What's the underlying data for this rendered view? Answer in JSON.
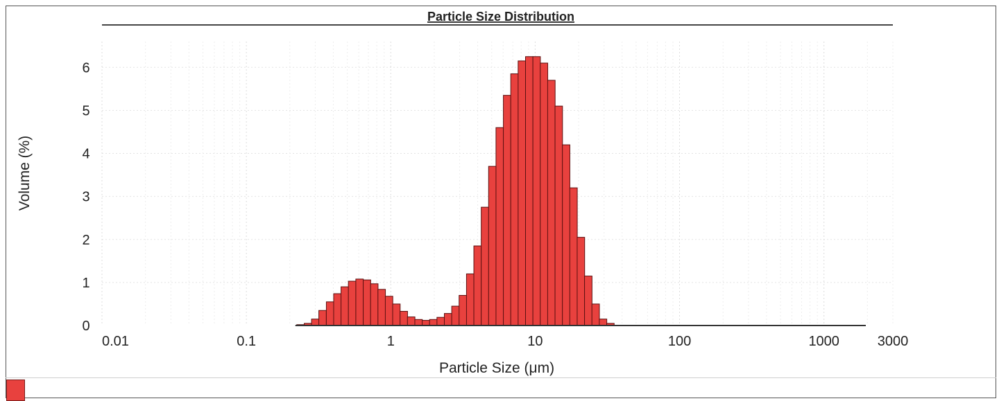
{
  "chart_data": {
    "type": "bar",
    "title": "Particle Size Distribution",
    "xlabel": "Particle Size (μm)",
    "ylabel": "Volume (%)",
    "xscale": "log",
    "xlim": [
      0.01,
      3000
    ],
    "ylim": [
      0,
      6.6
    ],
    "x_ticks": [
      "0.01",
      "0.1",
      "1",
      "10",
      "100",
      "1000",
      "3000"
    ],
    "y_ticks": [
      "0",
      "1",
      "2",
      "3",
      "4",
      "5",
      "6"
    ],
    "grid": true,
    "bar_color": "#e8413e",
    "bar_edge_color": "#5a1010",
    "bins": [
      {
        "x": 0.237,
        "y": 0.02
      },
      {
        "x": 0.267,
        "y": 0.05
      },
      {
        "x": 0.3,
        "y": 0.15
      },
      {
        "x": 0.337,
        "y": 0.35
      },
      {
        "x": 0.38,
        "y": 0.55
      },
      {
        "x": 0.427,
        "y": 0.74
      },
      {
        "x": 0.48,
        "y": 0.9
      },
      {
        "x": 0.54,
        "y": 1.03
      },
      {
        "x": 0.608,
        "y": 1.08
      },
      {
        "x": 0.684,
        "y": 1.06
      },
      {
        "x": 0.769,
        "y": 0.97
      },
      {
        "x": 0.865,
        "y": 0.84
      },
      {
        "x": 0.973,
        "y": 0.68
      },
      {
        "x": 1.094,
        "y": 0.5
      },
      {
        "x": 1.231,
        "y": 0.33
      },
      {
        "x": 1.385,
        "y": 0.2
      },
      {
        "x": 1.558,
        "y": 0.14
      },
      {
        "x": 1.752,
        "y": 0.12
      },
      {
        "x": 1.971,
        "y": 0.14
      },
      {
        "x": 2.217,
        "y": 0.19
      },
      {
        "x": 2.494,
        "y": 0.28
      },
      {
        "x": 2.805,
        "y": 0.45
      },
      {
        "x": 3.155,
        "y": 0.7
      },
      {
        "x": 3.55,
        "y": 1.2
      },
      {
        "x": 3.993,
        "y": 1.85
      },
      {
        "x": 4.491,
        "y": 2.75
      },
      {
        "x": 5.052,
        "y": 3.7
      },
      {
        "x": 5.683,
        "y": 4.6
      },
      {
        "x": 6.393,
        "y": 5.35
      },
      {
        "x": 7.191,
        "y": 5.85
      },
      {
        "x": 8.089,
        "y": 6.15
      },
      {
        "x": 9.099,
        "y": 6.25
      },
      {
        "x": 10.235,
        "y": 6.25
      },
      {
        "x": 11.513,
        "y": 6.1
      },
      {
        "x": 12.951,
        "y": 5.7
      },
      {
        "x": 14.568,
        "y": 5.1
      },
      {
        "x": 16.387,
        "y": 4.2
      },
      {
        "x": 18.434,
        "y": 3.2
      },
      {
        "x": 20.736,
        "y": 2.05
      },
      {
        "x": 23.325,
        "y": 1.15
      },
      {
        "x": 26.237,
        "y": 0.5
      },
      {
        "x": 29.513,
        "y": 0.15
      },
      {
        "x": 33.199,
        "y": 0.05
      }
    ]
  }
}
